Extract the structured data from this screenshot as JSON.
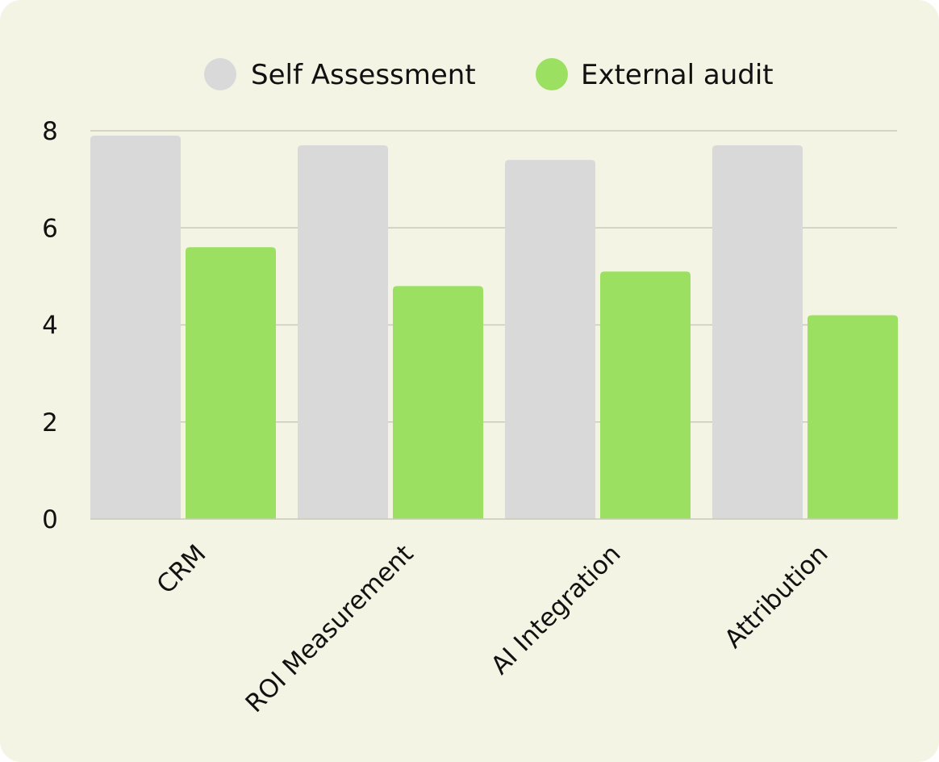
{
  "chart_data": {
    "type": "bar",
    "title": "",
    "xlabel": "",
    "ylabel": "",
    "categories": [
      "CRM",
      "ROI Measurement",
      "AI Integration",
      "Attribution"
    ],
    "series": [
      {
        "name": "Self Assessment",
        "values": [
          7.9,
          7.7,
          7.4,
          7.7
        ],
        "color": "#d9d9d9"
      },
      {
        "name": "External audit",
        "values": [
          5.6,
          4.8,
          5.1,
          4.2
        ],
        "color": "#9be060"
      }
    ],
    "ylim": [
      0,
      8
    ],
    "yticks": [
      "0",
      "2",
      "4",
      "6",
      "8"
    ],
    "grid": true,
    "legend_position": "top-center"
  },
  "colors": {
    "background": "#f3f4e3",
    "gridline": "#c9cabb"
  }
}
